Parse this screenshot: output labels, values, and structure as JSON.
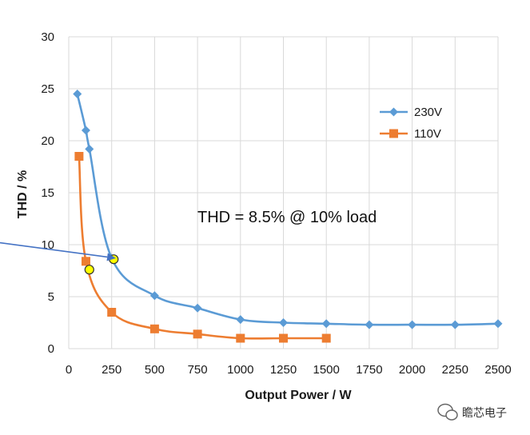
{
  "chart_data": {
    "type": "line",
    "title": "",
    "xlabel": "Output Power / W",
    "ylabel": "THD / %",
    "xlim": [
      0,
      2500
    ],
    "ylim": [
      0,
      30
    ],
    "x_ticks": [
      "0",
      "250",
      "500",
      "750",
      "1000",
      "1250",
      "1500",
      "1750",
      "2000",
      "2250",
      "2500"
    ],
    "y_ticks": [
      "0",
      "5",
      "10",
      "15",
      "20",
      "25",
      "30"
    ],
    "grid": true,
    "legend_position": "right",
    "series": [
      {
        "name": "230V",
        "color": "#5B9BD5",
        "marker": "diamond",
        "points": [
          [
            50,
            24.5
          ],
          [
            100,
            21.0
          ],
          [
            120,
            19.2
          ],
          [
            250,
            8.7
          ],
          [
            500,
            5.1
          ],
          [
            750,
            3.9
          ],
          [
            1000,
            2.8
          ],
          [
            1250,
            2.5
          ],
          [
            1500,
            2.4
          ],
          [
            1750,
            2.3
          ],
          [
            2000,
            2.3
          ],
          [
            2250,
            2.3
          ],
          [
            2500,
            2.4
          ]
        ]
      },
      {
        "name": "110V",
        "color": "#ED7D31",
        "marker": "square",
        "points": [
          [
            60,
            18.5
          ],
          [
            100,
            8.4
          ],
          [
            250,
            3.5
          ],
          [
            500,
            1.9
          ],
          [
            750,
            1.4
          ],
          [
            1000,
            1.0
          ],
          [
            1250,
            1.0
          ],
          [
            1500,
            1.0
          ]
        ]
      }
    ],
    "highlight_points": [
      [
        120,
        7.6
      ],
      [
        262,
        8.6
      ]
    ],
    "annotation": {
      "text": "THD = 8.5% @ 10% load",
      "arrow_from": [
        545,
        11.6
      ],
      "arrow_to": [
        275,
        8.7
      ]
    }
  },
  "watermark": {
    "text": "瞻芯电子"
  },
  "colors": {
    "grid": "#d9d9d9",
    "highlight_fill": "#ffff00",
    "arrow": "#4472c4"
  }
}
